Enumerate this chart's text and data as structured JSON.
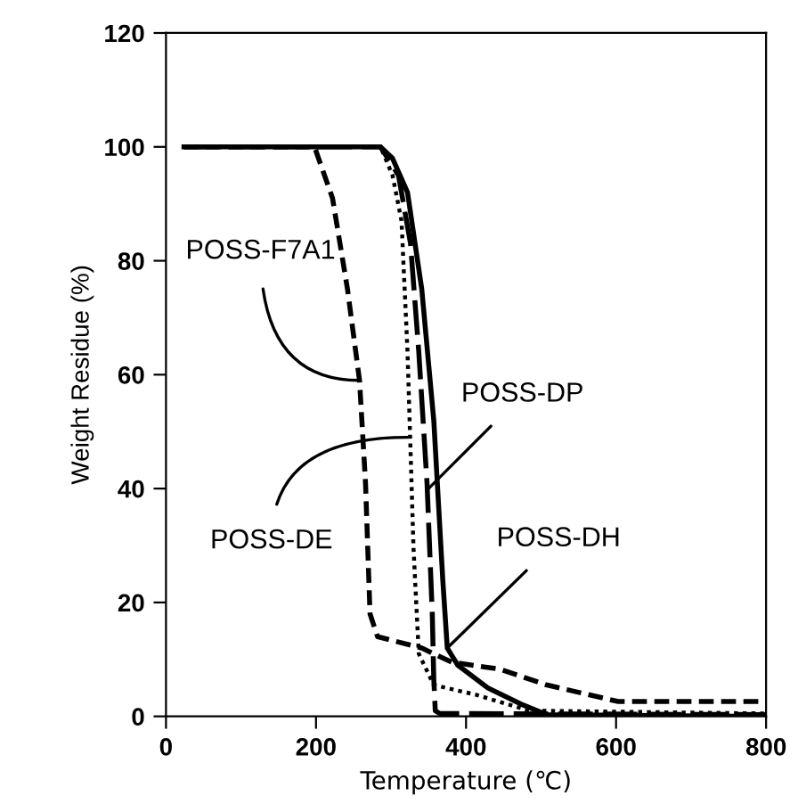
{
  "chart_data": {
    "type": "line",
    "xlabel": "Temperature (℃)",
    "ylabel": "Weight Residue (%)",
    "xlim": [
      0,
      800
    ],
    "xticks": [
      0,
      200,
      400,
      600,
      800
    ],
    "ylim": [
      0,
      120
    ],
    "yticks": [
      0,
      20,
      40,
      60,
      80,
      100,
      120
    ],
    "grid": false,
    "legend": false,
    "marker": "none",
    "series": [
      {
        "color": "#000000",
        "line_style": "dashed",
        "x": [
          24,
          198,
          222,
          242,
          258,
          266,
          272,
          282,
          341,
          381,
          445,
          508,
          603,
          800
        ],
        "values": [
          100,
          100,
          91,
          75,
          59,
          41,
          18,
          14,
          12,
          9.5,
          8.3,
          5.5,
          2.6,
          2.6
        ]
      },
      {
        "color": "#000000",
        "line_style": "dotted",
        "x": [
          24,
          286,
          302,
          314,
          322,
          330,
          337,
          357,
          413,
          484,
          800
        ],
        "values": [
          100,
          100,
          95,
          87,
          64,
          29.5,
          11,
          5.5,
          3.8,
          1,
          0.5
        ]
      },
      {
        "color": "#000000",
        "line_style": "longdash",
        "x": [
          24,
          286,
          310,
          326,
          337,
          348,
          355,
          357,
          359,
          365,
          800
        ],
        "values": [
          100,
          100,
          95,
          83,
          64,
          41,
          18,
          6.6,
          1,
          0.5,
          0.3
        ]
      },
      {
        "color": "#000000",
        "line_style": "solid",
        "x": [
          24,
          286,
          302,
          322,
          341,
          357,
          369,
          375,
          389,
          429,
          476,
          508,
          800
        ],
        "values": [
          100,
          100,
          98,
          92,
          75,
          52,
          24,
          12,
          9,
          5,
          2,
          0.3,
          0
        ]
      }
    ],
    "annotations": [
      {
        "text": "POSS-F7A1",
        "x": 258,
        "y": 59
      },
      {
        "text": "POSS-DE",
        "x": 322,
        "y": 49
      },
      {
        "text": "POSS-DP",
        "x": 350,
        "y": 40
      },
      {
        "text": "POSS-DH",
        "x": 375,
        "y": 12
      }
    ]
  }
}
